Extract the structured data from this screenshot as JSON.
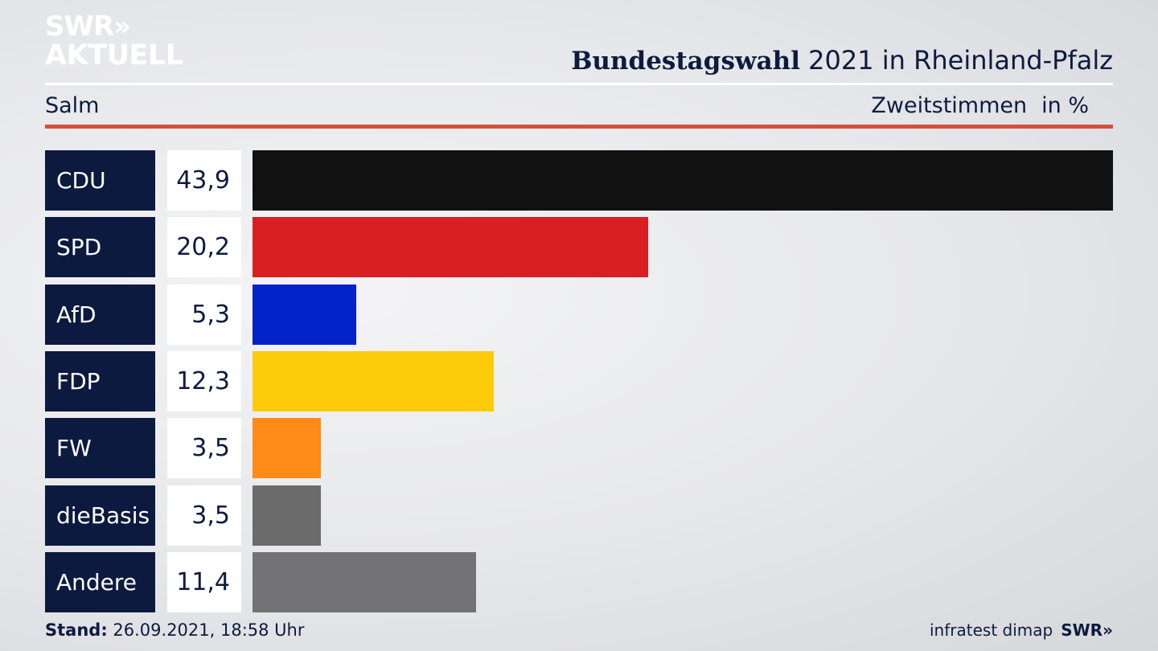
{
  "header": {
    "logo_line1": "SWR»",
    "logo_line2": "AKTUELL",
    "title_bold": "Bundestagswahl",
    "title_rest": " 2021 in Rheinland-Pfalz",
    "region": "Salm",
    "measure": "Zweitstimmen",
    "unit": "in %"
  },
  "chart_data": {
    "type": "bar",
    "orientation": "horizontal",
    "categories": [
      "CDU",
      "SPD",
      "AfD",
      "FDP",
      "FW",
      "dieBasis",
      "Andere"
    ],
    "values": [
      43.9,
      20.2,
      5.3,
      12.3,
      3.5,
      3.5,
      11.4
    ],
    "value_labels": [
      "43,9",
      "20,2",
      "5,3",
      "12,3",
      "3,5",
      "3,5",
      "11,4"
    ],
    "colors": [
      "#111111",
      "#d91f22",
      "#0422c9",
      "#fdcb0a",
      "#fe8a18",
      "#6b6b6b",
      "#737375"
    ],
    "xlim": [
      0,
      43.9
    ]
  },
  "footer": {
    "stand_label": "Stand:",
    "stand_value": " 26.09.2021, 18:58 Uhr",
    "source": "infratest dimap",
    "brand": "SWR»"
  }
}
